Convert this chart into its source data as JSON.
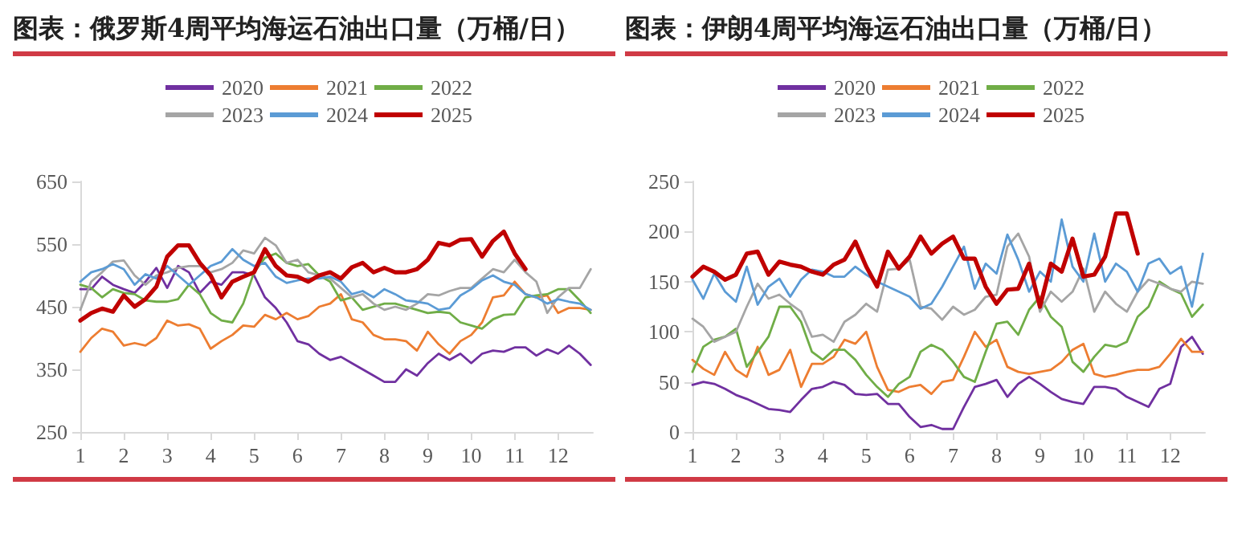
{
  "chart_data": [
    {
      "type": "line",
      "title": "图表：俄罗斯4周平均海运石油出口量（万桶/日）",
      "x": [
        1,
        1.25,
        1.5,
        1.75,
        2,
        2.25,
        2.5,
        2.75,
        3,
        3.25,
        3.5,
        3.75,
        4,
        4.25,
        4.5,
        4.75,
        5,
        5.25,
        5.5,
        5.75,
        6,
        6.25,
        6.5,
        6.75,
        7,
        7.25,
        7.5,
        7.75,
        8,
        8.25,
        8.5,
        8.75,
        9,
        9.25,
        9.5,
        9.75,
        10,
        10.25,
        10.5,
        10.75,
        11,
        11.25,
        11.5,
        11.75,
        12,
        12.25,
        12.5,
        12.75
      ],
      "xlim": [
        1,
        12.8
      ],
      "xticks": [
        1,
        2,
        3,
        4,
        5,
        6,
        7,
        8,
        9,
        10,
        11,
        12
      ],
      "ylim": [
        250,
        650
      ],
      "yticks": [
        250,
        350,
        450,
        550,
        650
      ],
      "grid": false,
      "legend": "top",
      "marker": "none",
      "line_style": "solid",
      "series": [
        {
          "name": "2020",
          "color": "#7030a0",
          "values": [
            478,
            478,
            498,
            485,
            478,
            472,
            490,
            512,
            480,
            515,
            505,
            472,
            490,
            485,
            505,
            505,
            500,
            465,
            448,
            425,
            395,
            390,
            375,
            365,
            370,
            360,
            350,
            340,
            330,
            330,
            350,
            340,
            360,
            375,
            365,
            375,
            360,
            375,
            380,
            378,
            385,
            385,
            372,
            382,
            375,
            388,
            375,
            357
          ]
        },
        {
          "name": "2021",
          "color": "#ed7d31",
          "values": [
            378,
            400,
            415,
            410,
            388,
            392,
            388,
            400,
            428,
            420,
            422,
            415,
            383,
            395,
            405,
            420,
            418,
            437,
            430,
            440,
            430,
            435,
            450,
            455,
            470,
            430,
            425,
            405,
            398,
            398,
            395,
            380,
            410,
            390,
            375,
            395,
            405,
            425,
            465,
            468,
            490,
            470,
            465,
            468,
            440,
            448,
            448,
            445
          ]
        },
        {
          "name": "2022",
          "color": "#70ad47",
          "values": [
            485,
            480,
            465,
            478,
            472,
            470,
            460,
            458,
            458,
            462,
            485,
            470,
            440,
            428,
            425,
            455,
            505,
            528,
            535,
            520,
            515,
            518,
            500,
            490,
            460,
            465,
            445,
            450,
            455,
            455,
            450,
            445,
            440,
            442,
            440,
            425,
            420,
            415,
            430,
            437,
            438,
            465,
            468,
            470,
            478,
            478,
            460,
            440
          ]
        },
        {
          "name": "2023",
          "color": "#a5a5a5",
          "values": [
            445,
            490,
            505,
            522,
            524,
            500,
            485,
            500,
            505,
            512,
            515,
            515,
            505,
            510,
            520,
            540,
            535,
            560,
            548,
            520,
            525,
            505,
            500,
            495,
            480,
            465,
            470,
            455,
            445,
            450,
            445,
            455,
            470,
            468,
            475,
            480,
            480,
            495,
            510,
            505,
            525,
            505,
            490,
            440,
            465,
            480,
            480,
            510
          ]
        },
        {
          "name": "2024",
          "color": "#5b9bd5",
          "values": [
            490,
            505,
            510,
            518,
            510,
            485,
            502,
            495,
            515,
            500,
            485,
            500,
            515,
            522,
            542,
            525,
            515,
            520,
            498,
            488,
            492,
            495,
            495,
            498,
            490,
            470,
            475,
            465,
            478,
            470,
            460,
            458,
            455,
            445,
            448,
            468,
            478,
            492,
            500,
            490,
            485,
            470,
            465,
            455,
            462,
            458,
            455,
            445
          ]
        },
        {
          "name": "2025",
          "color": "#c00000",
          "values": [
            428,
            440,
            447,
            442,
            468,
            450,
            462,
            482,
            530,
            548,
            548,
            520,
            500,
            465,
            490,
            498,
            505,
            542,
            515,
            500,
            498,
            490,
            500,
            505,
            495,
            513,
            520,
            505,
            512,
            505,
            505,
            510,
            525,
            552,
            548,
            557,
            558,
            530,
            555,
            570,
            535,
            510,
            null,
            null,
            null,
            null,
            null,
            null
          ]
        }
      ]
    },
    {
      "type": "line",
      "title": "图表：伊朗4周平均海运石油出口量（万桶/日）",
      "x": [
        1,
        1.25,
        1.5,
        1.75,
        2,
        2.25,
        2.5,
        2.75,
        3,
        3.25,
        3.5,
        3.75,
        4,
        4.25,
        4.5,
        4.75,
        5,
        5.25,
        5.5,
        5.75,
        6,
        6.25,
        6.5,
        6.75,
        7,
        7.25,
        7.5,
        7.75,
        8,
        8.25,
        8.5,
        8.75,
        9,
        9.25,
        9.5,
        9.75,
        10,
        10.25,
        10.5,
        10.75,
        11,
        11.25,
        11.5,
        11.75,
        12,
        12.25,
        12.5,
        12.75
      ],
      "xlim": [
        1,
        12.8
      ],
      "xticks": [
        1,
        2,
        3,
        4,
        5,
        6,
        7,
        8,
        9,
        10,
        11,
        12
      ],
      "ylim": [
        0,
        250
      ],
      "yticks": [
        0,
        50,
        100,
        150,
        200,
        250
      ],
      "grid": false,
      "legend": "top",
      "marker": "none",
      "line_style": "solid",
      "series": [
        {
          "name": "2020",
          "color": "#7030a0",
          "values": [
            47,
            50,
            48,
            43,
            37,
            33,
            28,
            23,
            22,
            20,
            32,
            43,
            45,
            50,
            47,
            38,
            37,
            38,
            28,
            28,
            15,
            5,
            7,
            3,
            3,
            25,
            45,
            48,
            52,
            35,
            48,
            55,
            48,
            40,
            33,
            30,
            28,
            45,
            45,
            43,
            35,
            30,
            25,
            43,
            48,
            85,
            95,
            78
          ]
        },
        {
          "name": "2021",
          "color": "#ed7d31",
          "values": [
            72,
            63,
            57,
            80,
            62,
            55,
            85,
            57,
            62,
            82,
            45,
            68,
            68,
            75,
            92,
            88,
            100,
            65,
            42,
            40,
            45,
            47,
            38,
            50,
            52,
            75,
            100,
            85,
            92,
            65,
            60,
            58,
            60,
            62,
            70,
            82,
            88,
            58,
            55,
            57,
            60,
            62,
            62,
            65,
            78,
            93,
            80,
            80
          ]
        },
        {
          "name": "2022",
          "color": "#70ad47",
          "values": [
            60,
            85,
            92,
            95,
            103,
            65,
            80,
            95,
            125,
            125,
            110,
            80,
            72,
            82,
            82,
            72,
            57,
            45,
            35,
            48,
            55,
            80,
            87,
            82,
            70,
            55,
            50,
            80,
            108,
            110,
            97,
            122,
            135,
            115,
            105,
            70,
            60,
            75,
            87,
            85,
            90,
            115,
            125,
            150,
            143,
            138,
            115,
            127
          ]
        },
        {
          "name": "2023",
          "color": "#a5a5a5",
          "values": [
            113,
            105,
            90,
            95,
            100,
            125,
            148,
            133,
            137,
            128,
            120,
            95,
            97,
            90,
            110,
            117,
            128,
            120,
            162,
            163,
            172,
            125,
            123,
            112,
            125,
            117,
            122,
            135,
            137,
            185,
            198,
            175,
            120,
            140,
            130,
            140,
            163,
            120,
            140,
            128,
            120,
            140,
            152,
            148,
            143,
            140,
            150,
            148
          ]
        },
        {
          "name": "2024",
          "color": "#5b9bd5",
          "values": [
            152,
            133,
            158,
            140,
            130,
            165,
            127,
            145,
            153,
            135,
            152,
            162,
            160,
            155,
            155,
            165,
            157,
            150,
            145,
            140,
            135,
            123,
            128,
            145,
            165,
            185,
            143,
            168,
            158,
            197,
            172,
            140,
            160,
            150,
            212,
            165,
            150,
            198,
            150,
            168,
            160,
            140,
            168,
            173,
            158,
            165,
            125,
            178
          ]
        },
        {
          "name": "2025",
          "color": "#c00000",
          "values": [
            155,
            165,
            160,
            152,
            157,
            178,
            180,
            157,
            170,
            167,
            165,
            160,
            157,
            167,
            172,
            190,
            165,
            145,
            180,
            163,
            175,
            195,
            178,
            188,
            195,
            173,
            173,
            145,
            128,
            142,
            143,
            168,
            125,
            168,
            160,
            193,
            155,
            157,
            175,
            218,
            218,
            178,
            null,
            null,
            null,
            null,
            null,
            null
          ]
        }
      ]
    }
  ]
}
